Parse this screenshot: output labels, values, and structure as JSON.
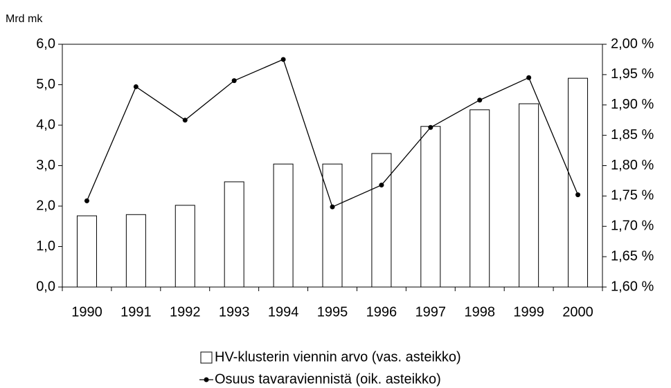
{
  "chart_data": {
    "type": "bar_line",
    "y_axis_label": "Mrd mk",
    "categories": [
      "1990",
      "1991",
      "1992",
      "1993",
      "1994",
      "1995",
      "1996",
      "1997",
      "1998",
      "1999",
      "2000"
    ],
    "series": [
      {
        "name": "HV-klusterin viennin arvo (vas. asteikko)",
        "type": "bar",
        "color": "#ffffff",
        "axis": "y",
        "values": [
          1.76,
          1.79,
          2.02,
          2.6,
          3.04,
          3.04,
          3.3,
          3.97,
          4.38,
          4.53,
          5.16
        ]
      },
      {
        "name": "Osuus tavaraviennistä (oik. asteikko)",
        "type": "line",
        "color": "#000000",
        "axis": "y2",
        "values": [
          1.742,
          1.93,
          1.875,
          1.94,
          1.975,
          1.732,
          1.768,
          1.863,
          1.908,
          1.945,
          1.752
        ]
      }
    ],
    "ylim": [
      0,
      6
    ],
    "yticks": [
      {
        "value": 0,
        "label": "0,0"
      },
      {
        "value": 1,
        "label": "1,0"
      },
      {
        "value": 2,
        "label": "2,0"
      },
      {
        "value": 3,
        "label": "3,0"
      },
      {
        "value": 4,
        "label": "4,0"
      },
      {
        "value": 5,
        "label": "5,0"
      },
      {
        "value": 6,
        "label": "6,0"
      }
    ],
    "y2lim": [
      1.6,
      2.0
    ],
    "y2ticks": [
      {
        "value": 1.6,
        "label": "1,60 %"
      },
      {
        "value": 1.65,
        "label": "1,65 %"
      },
      {
        "value": 1.7,
        "label": "1,70 %"
      },
      {
        "value": 1.75,
        "label": "1,75 %"
      },
      {
        "value": 1.8,
        "label": "1,80 %"
      },
      {
        "value": 1.85,
        "label": "1,85 %"
      },
      {
        "value": 1.9,
        "label": "1,90 %"
      },
      {
        "value": 1.95,
        "label": "1,95 %"
      },
      {
        "value": 2.0,
        "label": "2,00 %"
      }
    ],
    "grid": false,
    "legend": "bottom"
  }
}
